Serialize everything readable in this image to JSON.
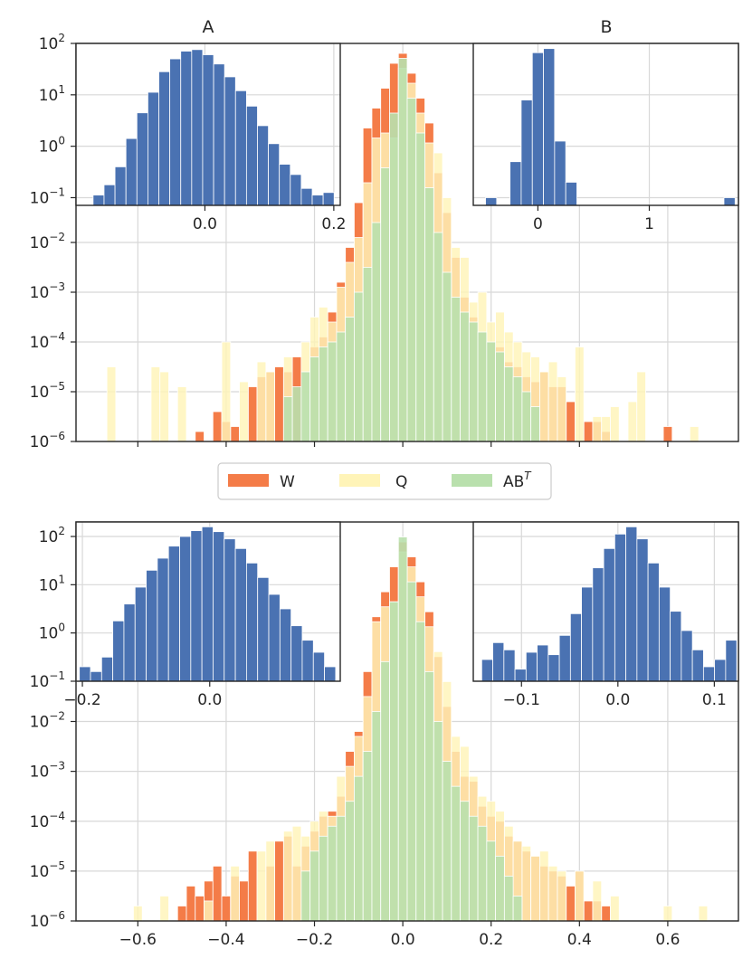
{
  "colors": {
    "W": "#f47c48",
    "Q": "#fff4b8",
    "AB": "#b9e0ad",
    "inset_bar": "#4a72b2",
    "grid": "#d8d8d8",
    "frame": "#262626"
  },
  "legend": {
    "items": [
      {
        "key": "W",
        "label": "W"
      },
      {
        "key": "Q",
        "label": "Q"
      },
      {
        "key": "AB",
        "label": "AB",
        "sup": "T"
      }
    ]
  },
  "chart_data": [
    {
      "id": "top-main",
      "type": "bar",
      "title": "",
      "xlim": [
        -0.74,
        0.76
      ],
      "ylim_log": [
        -6,
        2
      ],
      "xticks": [
        -0.6,
        -0.4,
        -0.2,
        0.0,
        0.2,
        0.4,
        0.6
      ],
      "xtick_labels": [],
      "yticks": [
        -6,
        -5,
        -4,
        -3,
        -2
      ],
      "ytick_labels": [
        "10",
        "10",
        "10",
        "10",
        "10"
      ],
      "ytick_exps": [
        "−6",
        "−5",
        "−4",
        "−3",
        "−2"
      ],
      "bin_width": 0.02,
      "series": [
        {
          "name": "W",
          "x": [
            -0.46,
            -0.42,
            -0.4,
            -0.38,
            -0.34,
            -0.32,
            -0.3,
            -0.28,
            -0.26,
            -0.24,
            -0.2,
            -0.18,
            -0.16,
            -0.14,
            -0.12,
            -0.1,
            -0.08,
            -0.06,
            -0.04,
            -0.02,
            0.0,
            0.02,
            0.04,
            0.06,
            0.08,
            0.1,
            0.12,
            0.14,
            0.16,
            0.18,
            0.2,
            0.22,
            0.24,
            0.26,
            0.28,
            0.3,
            0.32,
            0.34,
            0.36,
            0.38,
            0.42,
            0.44,
            0.46,
            0.6
          ],
          "logy": [
            -5.8,
            -5.4,
            -5.6,
            -5.7,
            -4.9,
            -4.7,
            -4.6,
            -4.5,
            -4.6,
            -4.3,
            -4.1,
            -3.9,
            -3.4,
            -2.8,
            -2.1,
            -1.2,
            0.3,
            0.7,
            1.1,
            1.6,
            1.8,
            1.4,
            0.9,
            0.4,
            -0.6,
            -1.4,
            -2.3,
            -3.1,
            -3.5,
            -3.8,
            -4.0,
            -4.1,
            -4.4,
            -4.5,
            -4.7,
            -4.8,
            -4.6,
            -4.9,
            -4.9,
            -5.2,
            -5.6,
            -5.6,
            -5.8,
            -5.7
          ]
        },
        {
          "name": "Q",
          "x": [
            -0.66,
            -0.56,
            -0.54,
            -0.5,
            -0.4,
            -0.36,
            -0.32,
            -0.3,
            -0.26,
            -0.22,
            -0.2,
            -0.18,
            -0.16,
            -0.14,
            -0.12,
            -0.1,
            -0.08,
            -0.06,
            -0.04,
            -0.02,
            0.0,
            0.02,
            0.04,
            0.06,
            0.08,
            0.1,
            0.12,
            0.14,
            0.16,
            0.18,
            0.2,
            0.22,
            0.24,
            0.26,
            0.28,
            0.3,
            0.32,
            0.34,
            0.36,
            0.4,
            0.44,
            0.46,
            0.48,
            0.52,
            0.54,
            0.66
          ],
          "logy": [
            -4.5,
            -4.5,
            -4.6,
            -4.9,
            -4.0,
            -4.8,
            -4.4,
            -4.6,
            -4.3,
            -4.0,
            -3.5,
            -3.3,
            -3.6,
            -2.9,
            -2.4,
            -1.9,
            -0.8,
            0.1,
            0.2,
            0.1,
            1.5,
            1.2,
            0.6,
            0.0,
            -0.2,
            -1.1,
            -2.1,
            -2.3,
            -3.2,
            -3.0,
            -3.6,
            -3.4,
            -3.8,
            -4.0,
            -4.2,
            -4.3,
            -4.6,
            -4.4,
            -4.7,
            -4.1,
            -5.5,
            -5.5,
            -5.3,
            -5.2,
            -4.6,
            -5.7
          ]
        },
        {
          "name": "AB",
          "x": [
            -0.26,
            -0.24,
            -0.22,
            -0.2,
            -0.18,
            -0.16,
            -0.14,
            -0.12,
            -0.1,
            -0.08,
            -0.06,
            -0.04,
            -0.02,
            0.0,
            0.02,
            0.04,
            0.06,
            0.08,
            0.1,
            0.12,
            0.14,
            0.16,
            0.18,
            0.2,
            0.22,
            0.24,
            0.26,
            0.28,
            0.3
          ],
          "logy": [
            -5.1,
            -4.9,
            -4.6,
            -4.3,
            -4.1,
            -4.0,
            -3.8,
            -3.5,
            -3.0,
            -2.5,
            -1.6,
            -0.5,
            0.6,
            1.7,
            0.9,
            0.2,
            -0.9,
            -1.8,
            -2.6,
            -3.1,
            -3.4,
            -3.6,
            -3.8,
            -4.0,
            -4.2,
            -4.5,
            -4.7,
            -5.0,
            -5.3
          ]
        }
      ]
    },
    {
      "id": "inset-A",
      "type": "bar",
      "title": "A",
      "xlim": [
        -0.2,
        0.21
      ],
      "ylim_log": [
        -1.15,
        2
      ],
      "xticks": [
        0.0,
        0.2
      ],
      "xtick_labels": [
        "0.0",
        "0.2"
      ],
      "yticks": [
        -1,
        0,
        1,
        2
      ],
      "ytick_labels": [
        "10",
        "10",
        "10",
        "10"
      ],
      "ytick_exps": [
        "−1",
        "0",
        "1",
        "2"
      ],
      "bin_width": 0.017,
      "x": [
        -0.165,
        -0.148,
        -0.131,
        -0.114,
        -0.097,
        -0.08,
        -0.063,
        -0.046,
        -0.029,
        -0.012,
        0.005,
        0.022,
        0.039,
        0.056,
        0.073,
        0.09,
        0.107,
        0.124,
        0.141,
        0.158,
        0.175,
        0.192
      ],
      "logy": [
        -0.95,
        -0.75,
        -0.4,
        0.15,
        0.65,
        1.05,
        1.45,
        1.7,
        1.85,
        1.88,
        1.78,
        1.6,
        1.35,
        1.08,
        0.78,
        0.4,
        0.05,
        -0.35,
        -0.55,
        -0.82,
        -0.95,
        -0.9
      ]
    },
    {
      "id": "inset-B",
      "type": "bar",
      "title": "B",
      "xlim": [
        -0.58,
        1.8
      ],
      "ylim_log": [
        -1.15,
        2
      ],
      "xticks": [
        0,
        1
      ],
      "xtick_labels": [
        "0",
        "1"
      ],
      "yticks": [],
      "ytick_labels": [],
      "bin_width": 0.1,
      "x": [
        -0.42,
        -0.2,
        -0.1,
        0.0,
        0.1,
        0.2,
        0.3,
        1.72
      ],
      "logy": [
        -1.0,
        -0.3,
        0.9,
        1.82,
        1.9,
        0.1,
        -0.7,
        -1.0
      ]
    },
    {
      "id": "bottom-main",
      "type": "bar",
      "title": "",
      "xlim": [
        -0.74,
        0.76
      ],
      "ylim_log": [
        -6,
        2
      ],
      "xticks": [
        -0.6,
        -0.4,
        -0.2,
        0.0,
        0.2,
        0.4,
        0.6
      ],
      "xtick_labels": [
        "−0.6",
        "−0.4",
        "−0.2",
        "0.0",
        "0.2",
        "0.4",
        "0.6"
      ],
      "yticks": [
        -6,
        -5,
        -4,
        -3,
        -2
      ],
      "ytick_labels": [
        "10",
        "10",
        "10",
        "10",
        "10"
      ],
      "ytick_exps": [
        "−6",
        "−5",
        "−4",
        "−3",
        "−2"
      ],
      "bin_width": 0.02,
      "series": [
        {
          "name": "W",
          "x": [
            -0.5,
            -0.48,
            -0.46,
            -0.44,
            -0.42,
            -0.4,
            -0.38,
            -0.36,
            -0.34,
            -0.3,
            -0.28,
            -0.26,
            -0.24,
            -0.22,
            -0.2,
            -0.18,
            -0.16,
            -0.14,
            -0.12,
            -0.1,
            -0.08,
            -0.06,
            -0.04,
            -0.02,
            0.0,
            0.02,
            0.04,
            0.06,
            0.08,
            0.1,
            0.12,
            0.14,
            0.16,
            0.18,
            0.2,
            0.22,
            0.24,
            0.26,
            0.28,
            0.3,
            0.32,
            0.34,
            0.36,
            0.38,
            0.4,
            0.42,
            0.44,
            0.46
          ],
          "logy": [
            -5.7,
            -5.3,
            -5.5,
            -5.2,
            -4.9,
            -5.5,
            -5.1,
            -5.2,
            -4.6,
            -4.9,
            -4.4,
            -4.3,
            -4.9,
            -4.5,
            -4.2,
            -3.9,
            -3.8,
            -3.5,
            -2.6,
            -2.2,
            -1.0,
            0.1,
            0.6,
            1.1,
            1.6,
            1.3,
            0.8,
            0.2,
            -0.7,
            -1.7,
            -2.6,
            -3.1,
            -3.2,
            -3.7,
            -3.9,
            -4.0,
            -4.3,
            -4.4,
            -4.6,
            -4.7,
            -4.9,
            -5.0,
            -5.1,
            -5.3,
            -5.0,
            -5.6,
            -5.6,
            -5.7
          ]
        },
        {
          "name": "Q",
          "x": [
            -0.6,
            -0.54,
            -0.44,
            -0.38,
            -0.32,
            -0.3,
            -0.26,
            -0.24,
            -0.22,
            -0.2,
            -0.18,
            -0.16,
            -0.14,
            -0.12,
            -0.1,
            -0.08,
            -0.06,
            -0.04,
            -0.02,
            0.0,
            0.02,
            0.04,
            0.06,
            0.08,
            0.1,
            0.12,
            0.14,
            0.16,
            0.18,
            0.2,
            0.22,
            0.24,
            0.26,
            0.28,
            0.3,
            0.32,
            0.34,
            0.36,
            0.4,
            0.44,
            0.48,
            0.6,
            0.68
          ],
          "logy": [
            -5.7,
            -5.5,
            -5.6,
            -4.9,
            -4.6,
            -4.4,
            -4.2,
            -4.1,
            -4.3,
            -4.0,
            -3.8,
            -3.9,
            -3.1,
            -2.9,
            -2.3,
            -1.5,
            0.0,
            0.3,
            0.4,
            1.4,
            1.1,
            0.5,
            -0.1,
            -0.6,
            -1.2,
            -2.3,
            -2.5,
            -3.1,
            -3.5,
            -3.6,
            -3.8,
            -4.1,
            -4.4,
            -4.5,
            -4.7,
            -4.6,
            -4.9,
            -5.0,
            -5.0,
            -5.2,
            -5.5,
            -5.7,
            -5.7
          ]
        },
        {
          "name": "AB",
          "x": [
            -0.22,
            -0.2,
            -0.18,
            -0.16,
            -0.14,
            -0.12,
            -0.1,
            -0.08,
            -0.06,
            -0.04,
            -0.02,
            0.0,
            0.02,
            0.04,
            0.06,
            0.08,
            0.1,
            0.12,
            0.14,
            0.16,
            0.18,
            0.2,
            0.22,
            0.24,
            0.26
          ],
          "logy": [
            -5.0,
            -4.6,
            -4.3,
            -4.1,
            -3.9,
            -3.6,
            -3.1,
            -2.6,
            -1.8,
            -0.8,
            0.4,
            1.7,
            0.8,
            0.0,
            -1.0,
            -2.0,
            -2.8,
            -3.3,
            -3.6,
            -3.9,
            -4.1,
            -4.4,
            -4.7,
            -5.1,
            -5.5
          ]
        }
      ]
    },
    {
      "id": "inset-C",
      "type": "bar",
      "title": "",
      "xlim": [
        -0.21,
        0.205
      ],
      "ylim_log": [
        -1.0,
        2.3
      ],
      "xticks": [
        -0.2,
        0.0
      ],
      "xtick_labels": [
        "−0.2",
        "0.0"
      ],
      "yticks": [
        -1,
        0,
        1,
        2
      ],
      "ytick_labels": [
        "10",
        "10",
        "10",
        "10"
      ],
      "ytick_exps": [
        "−1",
        "0",
        "1",
        "2"
      ],
      "bin_width": 0.0175,
      "x": [
        -0.196,
        -0.1785,
        -0.161,
        -0.1435,
        -0.126,
        -0.1085,
        -0.091,
        -0.0735,
        -0.056,
        -0.0385,
        -0.021,
        -0.0035,
        0.014,
        0.0315,
        0.049,
        0.0665,
        0.084,
        0.1015,
        0.119,
        0.1365,
        0.154,
        0.1715,
        0.189
      ],
      "logy": [
        -0.7,
        -0.8,
        -0.5,
        0.25,
        0.6,
        0.95,
        1.3,
        1.55,
        1.8,
        2.0,
        2.12,
        2.2,
        2.1,
        1.95,
        1.75,
        1.45,
        1.15,
        0.8,
        0.5,
        0.15,
        -0.15,
        -0.4,
        -0.7
      ]
    },
    {
      "id": "inset-D",
      "type": "bar",
      "title": "",
      "xlim": [
        -0.15,
        0.125
      ],
      "ylim_log": [
        -1.0,
        2.3
      ],
      "xticks": [
        -0.1,
        0.0,
        0.1
      ],
      "xtick_labels": [
        "−0.1",
        "0.0",
        "0.1"
      ],
      "yticks": [],
      "ytick_labels": [],
      "bin_width": 0.0115,
      "x": [
        -0.1355,
        -0.124,
        -0.1125,
        -0.101,
        -0.0895,
        -0.078,
        -0.0665,
        -0.055,
        -0.0435,
        -0.032,
        -0.0205,
        -0.009,
        0.0025,
        0.014,
        0.0255,
        0.037,
        0.0485,
        0.06,
        0.0715,
        0.083,
        0.0945,
        0.106,
        0.1175
      ],
      "logy": [
        -0.55,
        -0.2,
        -0.35,
        -0.75,
        -0.4,
        -0.25,
        -0.45,
        -0.05,
        0.4,
        0.95,
        1.35,
        1.75,
        2.05,
        2.2,
        1.95,
        1.45,
        0.95,
        0.45,
        0.05,
        -0.35,
        -0.7,
        -0.55,
        -0.15
      ]
    }
  ]
}
